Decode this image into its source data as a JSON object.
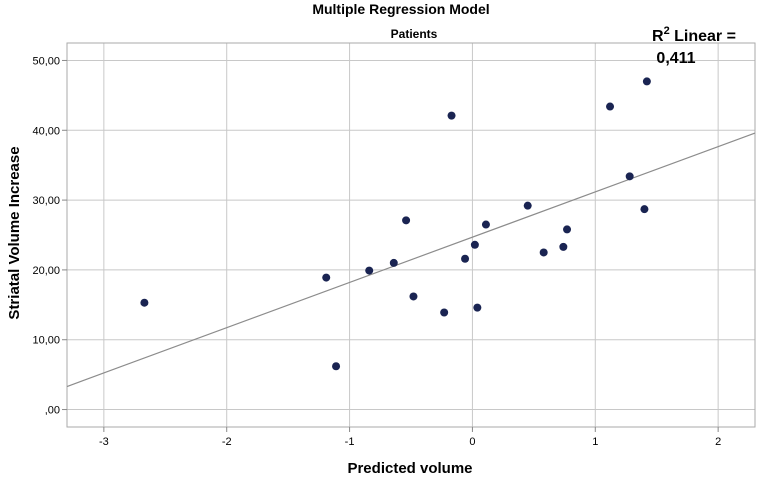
{
  "chart_data": {
    "type": "scatter",
    "title": "Multiple Regression Model",
    "subtitle": "Patients",
    "xlabel": "Predicted volume",
    "ylabel": "Striatal Volume Increase",
    "xlim": [
      -3.3,
      2.3
    ],
    "ylim": [
      -2.5,
      52.5
    ],
    "x_ticks": [
      -3,
      -2,
      -1,
      0,
      1,
      2
    ],
    "x_tick_labels": [
      "-3",
      "-2",
      "-1",
      "0",
      "1",
      "2"
    ],
    "y_ticks": [
      0,
      10,
      20,
      30,
      40,
      50
    ],
    "y_tick_labels": [
      ",00",
      "10,00",
      "20,00",
      "30,00",
      "40,00",
      "50,00"
    ],
    "grid": true,
    "point_color": "#1a2452",
    "fit_line_color": "#8c8c8c",
    "points": [
      {
        "x": -2.67,
        "y": 15.3
      },
      {
        "x": -1.19,
        "y": 18.9
      },
      {
        "x": -1.11,
        "y": 6.2
      },
      {
        "x": -0.84,
        "y": 19.9
      },
      {
        "x": -0.64,
        "y": 21.0
      },
      {
        "x": -0.54,
        "y": 27.1
      },
      {
        "x": -0.48,
        "y": 16.2
      },
      {
        "x": -0.23,
        "y": 13.9
      },
      {
        "x": -0.17,
        "y": 42.1
      },
      {
        "x": -0.06,
        "y": 21.6
      },
      {
        "x": 0.02,
        "y": 23.6
      },
      {
        "x": 0.04,
        "y": 14.6
      },
      {
        "x": 0.11,
        "y": 26.5
      },
      {
        "x": 0.45,
        "y": 29.2
      },
      {
        "x": 0.58,
        "y": 22.5
      },
      {
        "x": 0.74,
        "y": 23.3
      },
      {
        "x": 0.77,
        "y": 25.8
      },
      {
        "x": 1.12,
        "y": 43.4
      },
      {
        "x": 1.28,
        "y": 33.4
      },
      {
        "x": 1.4,
        "y": 28.7
      },
      {
        "x": 1.42,
        "y": 47.0
      }
    ],
    "fit_line": {
      "x": [
        -3.3,
        2.3
      ],
      "y": [
        3.3,
        39.6
      ]
    },
    "annotation": {
      "r2_prefix": "R",
      "r2_superscript": "2",
      "r2_text": " Linear =",
      "r2_value": "0,411"
    }
  }
}
